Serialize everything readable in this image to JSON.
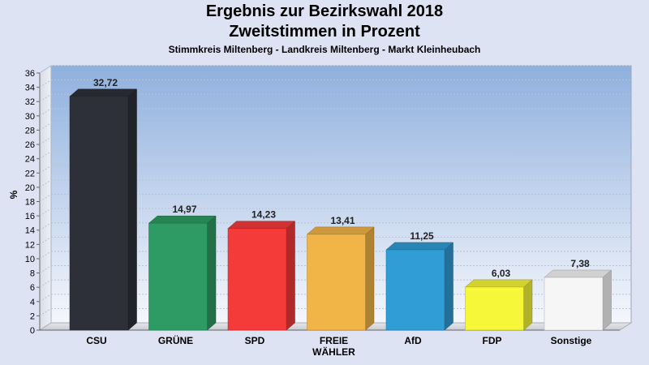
{
  "header": {
    "title_line1": "Ergebnis zur Bezirkswahl 2018",
    "title_line2": "Zweitstimmen in Prozent",
    "subtitle": "Stimmkreis Miltenberg - Landkreis Miltenberg - Markt Kleinheubach"
  },
  "chart_data": {
    "type": "bar",
    "title": "Ergebnis zur Bezirkswahl 2018 Zweitstimmen in Prozent",
    "subtitle": "Stimmkreis Miltenberg - Landkreis Miltenberg - Markt Kleinheubach",
    "ylabel": "%",
    "xlabel": "",
    "ylim": [
      0,
      36
    ],
    "ytick_step": 2,
    "grid": true,
    "categories": [
      [
        "CSU"
      ],
      [
        "GRÜNE"
      ],
      [
        "SPD"
      ],
      [
        "FREIE",
        "WÄHLER"
      ],
      [
        "AfD"
      ],
      [
        "FDP"
      ],
      [
        "Sonstige"
      ]
    ],
    "values": [
      32.72,
      14.97,
      14.23,
      13.41,
      11.25,
      6.03,
      7.38
    ],
    "value_labels": [
      "32,72",
      "14,97",
      "14,23",
      "13,41",
      "11,25",
      "6,03",
      "7,38"
    ],
    "colors": [
      "#2d3038",
      "#2e9b64",
      "#f53a3a",
      "#f1b447",
      "#309dd6",
      "#f7f73a",
      "#f6f6f6"
    ]
  }
}
